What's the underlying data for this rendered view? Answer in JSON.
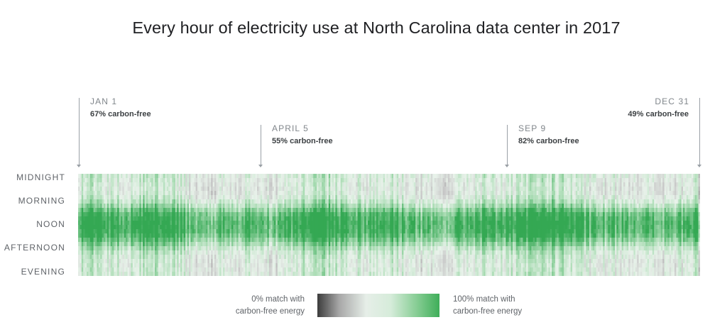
{
  "chart_data": {
    "type": "heatmap",
    "title": "Every hour of electricity use at North Carolina data center in 2017",
    "x_range": [
      "JAN 1",
      "DEC 31"
    ],
    "y_labels": [
      "MIDNIGHT",
      "MORNING",
      "NOON",
      "AFTERNOON",
      "EVENING"
    ],
    "rows_per_day": 24,
    "days": 365,
    "value_range": [
      0,
      100
    ],
    "value_unit": "% match with carbon-free energy",
    "annotations": [
      {
        "date": "JAN 1",
        "label": "67% carbon-free",
        "day_of_year": 1,
        "value": 67
      },
      {
        "date": "APRIL 5",
        "label": "55% carbon-free",
        "day_of_year": 95,
        "value": 55
      },
      {
        "date": "SEP 9",
        "label": "82% carbon-free",
        "day_of_year": 252,
        "value": 82
      },
      {
        "date": "DEC 31",
        "label": "49% carbon-free",
        "day_of_year": 365,
        "value": 49
      }
    ],
    "hourly_profile_estimate": [
      60,
      58,
      56,
      55,
      56,
      60,
      66,
      74,
      84,
      92,
      96,
      98,
      98,
      97,
      93,
      86,
      78,
      70,
      64,
      60,
      58,
      57,
      58,
      59
    ],
    "legend": {
      "low_label": "0% match with\ncarbon-free energy",
      "high_label": "100% match with\ncarbon-free energy",
      "colors": [
        "#3c3c3c",
        "#e6eee8",
        "#3fae59"
      ]
    }
  }
}
